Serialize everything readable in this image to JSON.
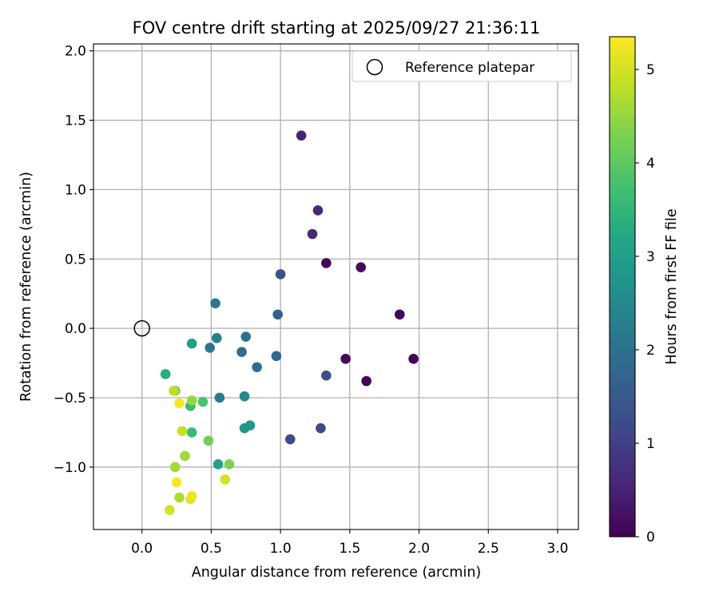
{
  "chart_data": {
    "type": "scatter",
    "title": "FOV centre drift starting at 2025/09/27 21:36:11",
    "xlabel": "Angular distance from reference (arcmin)",
    "ylabel": "Rotation from reference (arcmin)",
    "xlim": [
      -0.35,
      3.15
    ],
    "ylim": [
      -1.45,
      2.05
    ],
    "xticks": [
      0.0,
      0.5,
      1.0,
      1.5,
      2.0,
      2.5,
      3.0
    ],
    "xtick_labels": [
      "0.0",
      "0.5",
      "1.0",
      "1.5",
      "2.0",
      "2.5",
      "3.0"
    ],
    "yticks": [
      -1.0,
      -0.5,
      0.0,
      0.5,
      1.0,
      1.5,
      2.0
    ],
    "ytick_labels": [
      "−1.0",
      "−0.5",
      "0.0",
      "0.5",
      "1.0",
      "1.5",
      "2.0"
    ],
    "grid": true,
    "legend": {
      "location": "upper right",
      "entries": [
        "Reference platepar"
      ]
    },
    "reference_point": {
      "x": 0.0,
      "y": 0.0,
      "label": "Reference platepar"
    },
    "colorbar": {
      "label": "Hours from first FF file",
      "colormap": "viridis",
      "range": [
        0,
        5.35
      ],
      "ticks": [
        0,
        1,
        2,
        3,
        4,
        5
      ],
      "tick_labels": [
        "0",
        "1",
        "2",
        "3",
        "4",
        "5"
      ]
    },
    "points": [
      {
        "x": 1.33,
        "y": 0.47,
        "c": 0.05
      },
      {
        "x": 1.96,
        "y": -0.22,
        "c": 0.05
      },
      {
        "x": 1.62,
        "y": -0.38,
        "c": 0.05
      },
      {
        "x": 1.86,
        "y": 0.1,
        "c": 0.1
      },
      {
        "x": 1.47,
        "y": -0.22,
        "c": 0.1
      },
      {
        "x": 1.58,
        "y": 0.44,
        "c": 0.15
      },
      {
        "x": 1.15,
        "y": 1.39,
        "c": 0.5
      },
      {
        "x": 1.27,
        "y": 0.85,
        "c": 0.6
      },
      {
        "x": 1.23,
        "y": 0.68,
        "c": 0.6
      },
      {
        "x": 1.07,
        "y": -0.8,
        "c": 1.2
      },
      {
        "x": 1.29,
        "y": -0.72,
        "c": 1.2
      },
      {
        "x": 1.33,
        "y": -0.34,
        "c": 1.3
      },
      {
        "x": 1.0,
        "y": 0.39,
        "c": 1.3
      },
      {
        "x": 0.98,
        "y": 0.1,
        "c": 1.7
      },
      {
        "x": 0.97,
        "y": -0.2,
        "c": 1.8
      },
      {
        "x": 0.83,
        "y": -0.28,
        "c": 1.9
      },
      {
        "x": 0.72,
        "y": -0.17,
        "c": 1.9
      },
      {
        "x": 0.75,
        "y": -0.06,
        "c": 2.0
      },
      {
        "x": 0.53,
        "y": 0.18,
        "c": 2.1
      },
      {
        "x": 0.49,
        "y": -0.14,
        "c": 2.1
      },
      {
        "x": 0.56,
        "y": -0.5,
        "c": 2.2
      },
      {
        "x": 0.54,
        "y": -0.07,
        "c": 2.3
      },
      {
        "x": 0.74,
        "y": -0.49,
        "c": 2.5
      },
      {
        "x": 0.78,
        "y": -0.7,
        "c": 2.8
      },
      {
        "x": 0.74,
        "y": -0.72,
        "c": 2.8
      },
      {
        "x": 0.55,
        "y": -0.98,
        "c": 3.0
      },
      {
        "x": 0.36,
        "y": -0.11,
        "c": 3.0
      },
      {
        "x": 0.17,
        "y": -0.33,
        "c": 3.3
      },
      {
        "x": 0.36,
        "y": -0.75,
        "c": 3.6
      },
      {
        "x": 0.35,
        "y": -0.56,
        "c": 3.6
      },
      {
        "x": 0.44,
        "y": -0.53,
        "c": 3.8
      },
      {
        "x": 0.24,
        "y": -0.45,
        "c": 4.0
      },
      {
        "x": 0.48,
        "y": -0.81,
        "c": 4.2
      },
      {
        "x": 0.63,
        "y": -0.98,
        "c": 4.3
      },
      {
        "x": 0.36,
        "y": -0.52,
        "c": 4.5
      },
      {
        "x": 0.31,
        "y": -0.92,
        "c": 4.6
      },
      {
        "x": 0.24,
        "y": -1.0,
        "c": 4.6
      },
      {
        "x": 0.27,
        "y": -1.22,
        "c": 4.7
      },
      {
        "x": 0.23,
        "y": -0.45,
        "c": 4.8
      },
      {
        "x": 0.29,
        "y": -0.74,
        "c": 4.9
      },
      {
        "x": 0.6,
        "y": -1.09,
        "c": 5.0
      },
      {
        "x": 0.2,
        "y": -1.31,
        "c": 5.0
      },
      {
        "x": 0.35,
        "y": -1.23,
        "c": 5.1
      },
      {
        "x": 0.36,
        "y": -1.21,
        "c": 5.2
      },
      {
        "x": 0.25,
        "y": -1.11,
        "c": 5.3
      },
      {
        "x": 0.27,
        "y": -0.54,
        "c": 5.3
      }
    ]
  }
}
